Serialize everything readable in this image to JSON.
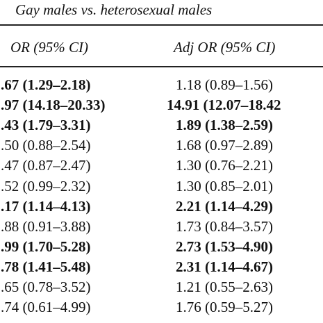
{
  "header": {
    "title": "Gay males vs. heterosexual males"
  },
  "columns": [
    "OR (95% CI)",
    "Adj OR (95% CI)"
  ],
  "rows": [
    {
      "or": ".67 (1.29–2.18)",
      "or_bold": true,
      "adj": "1.18 (0.89–1.56)",
      "adj_bold": false
    },
    {
      "or": ".97 (14.18–20.33)",
      "or_bold": true,
      "adj": "14.91 (12.07–18.42",
      "adj_bold": true
    },
    {
      "or": ".43 (1.79–3.31)",
      "or_bold": true,
      "adj": "1.89 (1.38–2.59)",
      "adj_bold": true
    },
    {
      "or": ".50 (0.88–2.54)",
      "or_bold": false,
      "adj": "1.68 (0.97–2.89)",
      "adj_bold": false
    },
    {
      "or": ".47 (0.87–2.47)",
      "or_bold": false,
      "adj": "1.30 (0.76–2.21)",
      "adj_bold": false
    },
    {
      "or": ".52 (0.99–2.32)",
      "or_bold": false,
      "adj": "1.30 (0.85–2.01)",
      "adj_bold": false
    },
    {
      "or": ".17 (1.14–4.13)",
      "or_bold": true,
      "adj": "2.21 (1.14–4.29)",
      "adj_bold": true
    },
    {
      "or": ".88 (0.91–3.88)",
      "or_bold": false,
      "adj": "1.73 (0.84–3.57)",
      "adj_bold": false
    },
    {
      "or": ".99 (1.70–5.28)",
      "or_bold": true,
      "adj": "2.73 (1.53–4.90)",
      "adj_bold": true
    },
    {
      "or": ".78 (1.41–5.48)",
      "or_bold": true,
      "adj": "2.31 (1.14–4.67)",
      "adj_bold": true
    },
    {
      "or": ".65 (0.78–3.52)",
      "or_bold": false,
      "adj": "1.21 (0.55–2.63)",
      "adj_bold": false
    },
    {
      "or": ".74 (0.61–4.99)",
      "or_bold": false,
      "adj": "1.76 (0.59–5.27)",
      "adj_bold": false
    }
  ]
}
